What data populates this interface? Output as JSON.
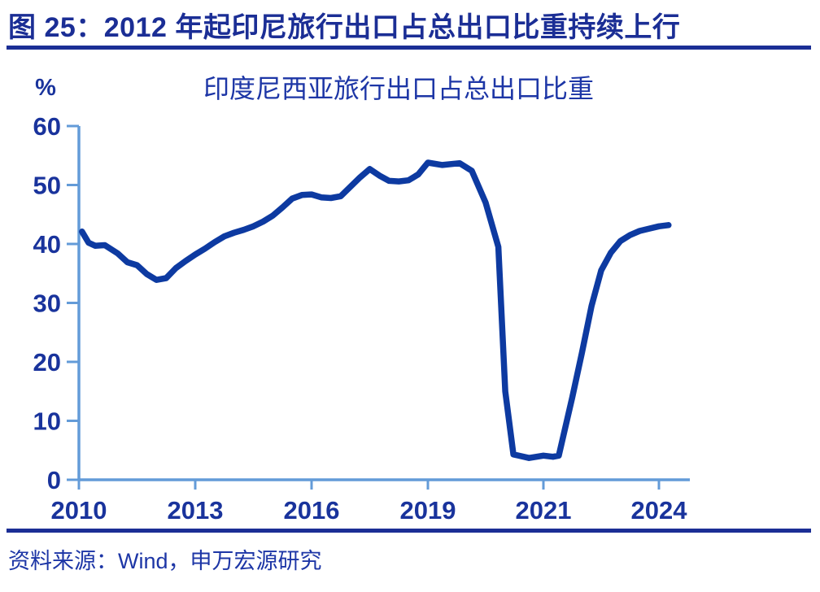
{
  "page": {
    "figure_title": "图 25：2012 年起印尼旅行出口占总出口比重持续上行",
    "source_note": "资料来源：Wind，申万宏源研究"
  },
  "colors": {
    "header_navy": "#1B2E95",
    "rule_blue": "#1B2E95",
    "chart_title_blue": "#1D36A6",
    "tick_label_navy": "#19339C",
    "axis_light_blue": "#639BD8",
    "series_blue": "#0D3AA1",
    "background": "#FFFFFF"
  },
  "chart_data": {
    "type": "line",
    "title": "印度尼西亚旅行出口占总出口比重",
    "ylabel": "%",
    "xlabel": "",
    "ylim": [
      0,
      60
    ],
    "y_ticks": [
      0,
      10,
      20,
      30,
      40,
      50,
      60
    ],
    "x_ticks": [
      {
        "label": "2010",
        "year": 2010
      },
      {
        "label": "2013",
        "year": 2013
      },
      {
        "label": "2016",
        "year": 2016
      },
      {
        "label": "2019",
        "year": 2019
      },
      {
        "label": "2021",
        "year": 2021
      },
      {
        "label": "2024",
        "year": 2024
      }
    ],
    "grid": false,
    "legend_position": "none",
    "series": [
      {
        "name": "印度尼西亚旅行出口占总出口比重",
        "points": [
          [
            2010.08,
            42.1
          ],
          [
            2010.25,
            40.2
          ],
          [
            2010.42,
            39.7
          ],
          [
            2010.67,
            39.8
          ],
          [
            2011.0,
            38.4
          ],
          [
            2011.25,
            36.9
          ],
          [
            2011.5,
            36.4
          ],
          [
            2011.75,
            34.9
          ],
          [
            2012.0,
            33.9
          ],
          [
            2012.25,
            34.2
          ],
          [
            2012.5,
            35.9
          ],
          [
            2012.75,
            37.1
          ],
          [
            2013.0,
            38.2
          ],
          [
            2013.25,
            39.2
          ],
          [
            2013.5,
            40.3
          ],
          [
            2013.75,
            41.3
          ],
          [
            2014.0,
            41.9
          ],
          [
            2014.25,
            42.4
          ],
          [
            2014.5,
            43.0
          ],
          [
            2014.75,
            43.8
          ],
          [
            2015.0,
            44.8
          ],
          [
            2015.25,
            46.2
          ],
          [
            2015.5,
            47.7
          ],
          [
            2015.75,
            48.3
          ],
          [
            2016.0,
            48.4
          ],
          [
            2016.25,
            47.9
          ],
          [
            2016.5,
            47.8
          ],
          [
            2016.75,
            48.1
          ],
          [
            2017.0,
            49.7
          ],
          [
            2017.25,
            51.3
          ],
          [
            2017.5,
            52.7
          ],
          [
            2017.75,
            51.6
          ],
          [
            2018.0,
            50.7
          ],
          [
            2018.25,
            50.6
          ],
          [
            2018.5,
            50.8
          ],
          [
            2018.75,
            51.8
          ],
          [
            2019.0,
            53.8
          ],
          [
            2019.25,
            53.4
          ],
          [
            2019.55,
            53.7
          ],
          [
            2019.76,
            52.4
          ],
          [
            2020.0,
            47.0
          ],
          [
            2020.22,
            39.5
          ],
          [
            2020.34,
            15.0
          ],
          [
            2020.48,
            4.3
          ],
          [
            2020.75,
            3.7
          ],
          [
            2021.0,
            4.1
          ],
          [
            2021.25,
            3.9
          ],
          [
            2021.4,
            4.1
          ],
          [
            2021.75,
            14.0
          ],
          [
            2022.0,
            21.5
          ],
          [
            2022.25,
            29.5
          ],
          [
            2022.5,
            35.5
          ],
          [
            2022.75,
            38.5
          ],
          [
            2023.0,
            40.5
          ],
          [
            2023.25,
            41.5
          ],
          [
            2023.5,
            42.2
          ],
          [
            2023.75,
            42.6
          ],
          [
            2024.0,
            43.0
          ],
          [
            2024.25,
            43.2
          ]
        ]
      }
    ]
  }
}
